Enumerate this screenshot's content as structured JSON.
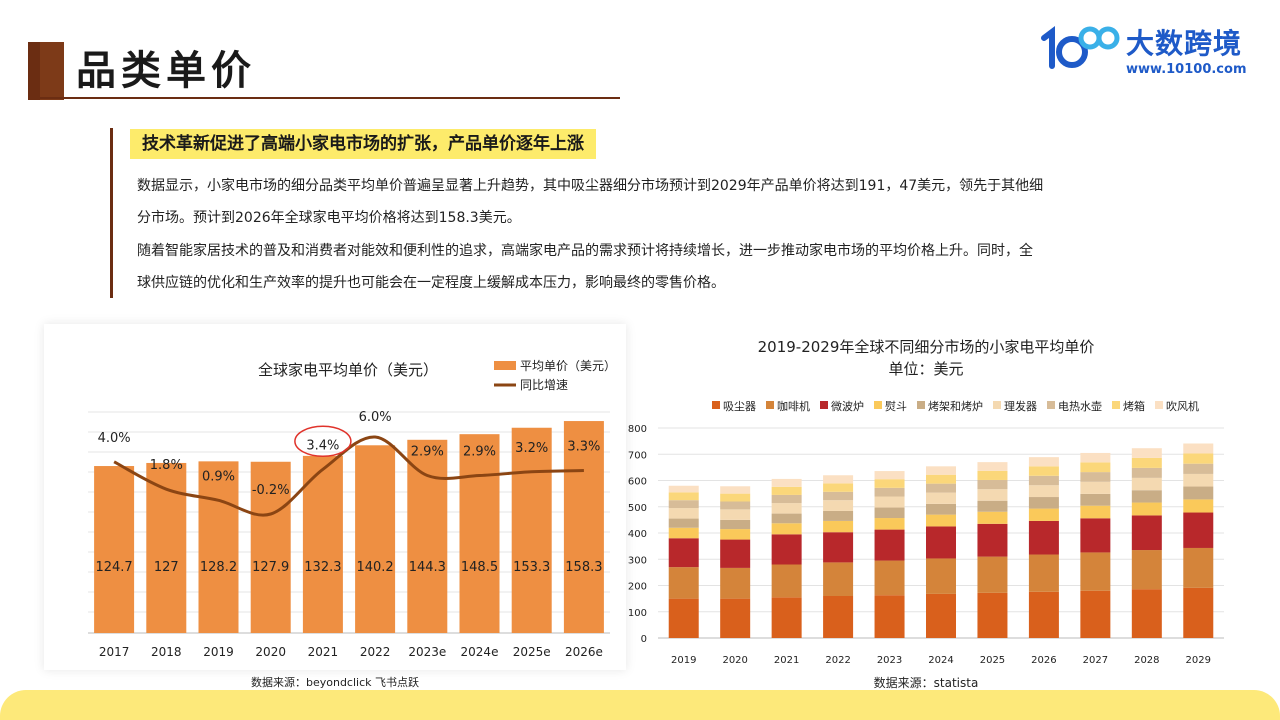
{
  "page": {
    "title": "品类单价",
    "highlight": "技术革新促进了高端小家电市场的扩张，产品单价逐年上涨",
    "paragraphs": [
      "数据显示，小家电市场的细分品类平均单价普遍呈显著上升趋势，其中吸尘器细分市场预计到2029年产品单价将达到191，47美元，领先于其他细",
      "分市场。预计到2026年全球家电平均价格将达到158.3美元。",
      "随着智能家居技术的普及和消费者对能效和便利性的追求，高端家电产品的需求预计将持续增长，进一步推动家电市场的平均价格上升。同时，全",
      "球供应链的优化和生产效率的提升也可能会在一定程度上缓解成本压力，影响最终的零售价格。"
    ]
  },
  "logo": {
    "name": "大数跨境",
    "url": "www.10100.com",
    "mark_text": "100"
  },
  "colors": {
    "brand_brown": "#6b2d12",
    "highlight": "#fdeb6b",
    "bar": "#ee8f42",
    "line": "#8b4513",
    "brand_blue": "#1e5ac8",
    "circle": "#e0332b"
  },
  "chart_data": [
    {
      "type": "bar",
      "title": "全球家电平均单价（美元）",
      "categories": [
        "2017",
        "2018",
        "2019",
        "2020",
        "2021",
        "2022",
        "2023e",
        "2024e",
        "2025e",
        "2026e"
      ],
      "series": [
        {
          "name": "平均单价（美元）",
          "kind": "bar",
          "values": [
            124.7,
            127,
            128.2,
            127.9,
            132.3,
            140.2,
            144.3,
            148.5,
            153.3,
            158.3
          ],
          "labels": [
            "124.7",
            "127",
            "128.2",
            "127.9",
            "132.3",
            "140.2",
            "144.3",
            "148.5",
            "153.3",
            "158.3"
          ]
        },
        {
          "name": "同比增速",
          "kind": "line",
          "values": [
            4.0,
            1.8,
            0.9,
            -0.2,
            3.4,
            6.0,
            2.9,
            2.9,
            3.2,
            3.3
          ],
          "labels": [
            "4.0%",
            "1.8%",
            "0.9%",
            "-0.2%",
            "3.4%",
            "6.0%",
            "2.9%",
            "2.9%",
            "3.2%",
            "3.3%"
          ]
        }
      ],
      "highlighted_category": "2021",
      "grid": true,
      "legend": "top-right",
      "source": "数据来源：beyondclick 飞书点跃"
    },
    {
      "type": "bar",
      "stacked": true,
      "title": "2019-2029年全球不同细分市场的小家电平均单价",
      "subtitle": "单位：美元",
      "categories": [
        "2019",
        "2020",
        "2021",
        "2022",
        "2023",
        "2024",
        "2025",
        "2026",
        "2027",
        "2028",
        "2029"
      ],
      "series": [
        {
          "name": "吸尘器",
          "color": "#d9601c",
          "values": [
            150,
            150,
            155,
            160,
            163,
            168,
            172,
            176,
            180,
            186,
            191
          ]
        },
        {
          "name": "咖啡机",
          "color": "#d4843a",
          "values": [
            120,
            117,
            125,
            128,
            132,
            135,
            138,
            142,
            146,
            149,
            152
          ]
        },
        {
          "name": "微波炉",
          "color": "#b8282b",
          "values": [
            110,
            108,
            115,
            115,
            118,
            122,
            125,
            128,
            130,
            132,
            135
          ]
        },
        {
          "name": "熨斗",
          "color": "#fac95a",
          "values": [
            40,
            40,
            42,
            43,
            44,
            45,
            46,
            47,
            48,
            49,
            50
          ]
        },
        {
          "name": "烤架和烤炉",
          "color": "#c9ad86",
          "values": [
            35,
            35,
            37,
            38,
            40,
            41,
            42,
            44,
            45,
            47,
            49
          ]
        },
        {
          "name": "理发器",
          "color": "#f4d9b1",
          "values": [
            40,
            40,
            40,
            41,
            42,
            43,
            44,
            45,
            46,
            47,
            48
          ]
        },
        {
          "name": "电热水壶",
          "color": "#d7bc98",
          "values": [
            30,
            30,
            31,
            32,
            33,
            34,
            35,
            36,
            37,
            38,
            39
          ]
        },
        {
          "name": "烤箱",
          "color": "#fbd77a",
          "values": [
            30,
            30,
            31,
            32,
            33,
            34,
            35,
            36,
            37,
            38,
            39
          ]
        },
        {
          "name": "吹风机",
          "color": "#fbe0c3",
          "values": [
            25,
            28,
            30,
            31,
            31,
            32,
            33,
            35,
            36,
            37,
            38
          ]
        }
      ],
      "ylim": [
        0,
        800
      ],
      "yticks": [
        "0",
        "100",
        "200",
        "300",
        "400",
        "500",
        "600",
        "700",
        "800"
      ],
      "grid": true,
      "legend": "top",
      "source": "数据来源：statista"
    }
  ]
}
